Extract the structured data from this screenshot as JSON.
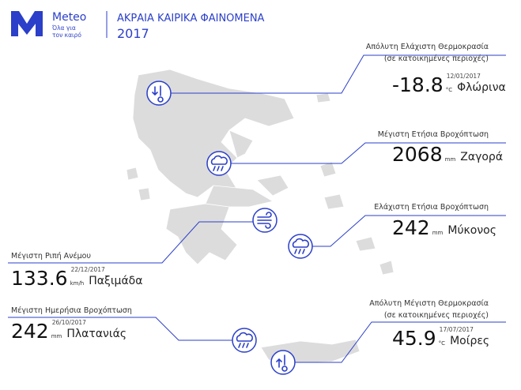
{
  "header": {
    "brand": "Meteo",
    "tagline": [
      "Όλα για",
      "τον καιρό"
    ],
    "title": "ΑΚΡΑΙΑ ΚΑΙΡΙΚΑ ΦΑΙΝΟΜΕΝΑ",
    "year": "2017"
  },
  "records": [
    {
      "label": "Απόλυτη Ελάχιστη Θερμοκρασία",
      "note": "(σε κατοικημένες περιοχές)",
      "value": "-18.8",
      "unit": "°C",
      "place": "Φλώρινα",
      "date": "12/01/2017"
    },
    {
      "label": "Μέγιστη Ετήσια Βροχόπτωση",
      "value": "2068",
      "unit": "mm",
      "place": "Ζαγορά"
    },
    {
      "label": "Ελάχιστη Ετήσια Βροχόπτωση",
      "value": "242",
      "unit": "mm",
      "place": "Μύκονος"
    },
    {
      "label": "Μέγιστη Ριπή Ανέμου",
      "value": "133.6",
      "unit": "km/h",
      "place": "Παξιμάδα",
      "date": "22/12/2017"
    },
    {
      "label": "Μέγιστη Ημερήσια Βροχόπτωση",
      "value": "242",
      "unit": "mm",
      "place": "Πλατανιάς",
      "date": "26/10/2017"
    },
    {
      "label": "Απόλυτη Μέγιστη Θερμοκρασία",
      "note": "(σε κατοικημένες περιοχές)",
      "value": "45.9",
      "unit": "°C",
      "place": "Μοίρες",
      "date": "17/07/2017"
    }
  ]
}
